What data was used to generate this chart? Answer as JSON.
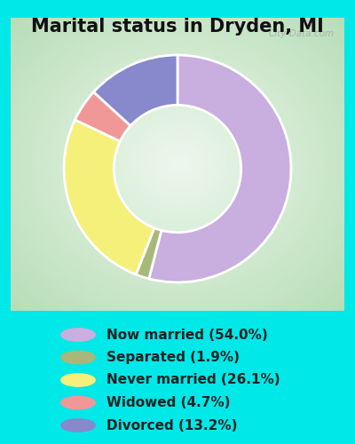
{
  "title": "Marital status in Dryden, MI",
  "slices": [
    54.0,
    1.9,
    26.1,
    4.7,
    13.2
  ],
  "labels": [
    "Now married (54.0%)",
    "Separated (1.9%)",
    "Never married (26.1%)",
    "Widowed (4.7%)",
    "Divorced (13.2%)"
  ],
  "colors": [
    "#c9aee0",
    "#a8b878",
    "#f5f07a",
    "#f09898",
    "#8888cc"
  ],
  "start_angle": 90,
  "title_fontsize": 15,
  "title_color": "#111111",
  "legend_fontsize": 11,
  "bg_outer": "#00e8e8",
  "bg_chart_edge": "#b8ddb8",
  "bg_chart_center": "#e8f8e0",
  "watermark": "City-Data.com"
}
